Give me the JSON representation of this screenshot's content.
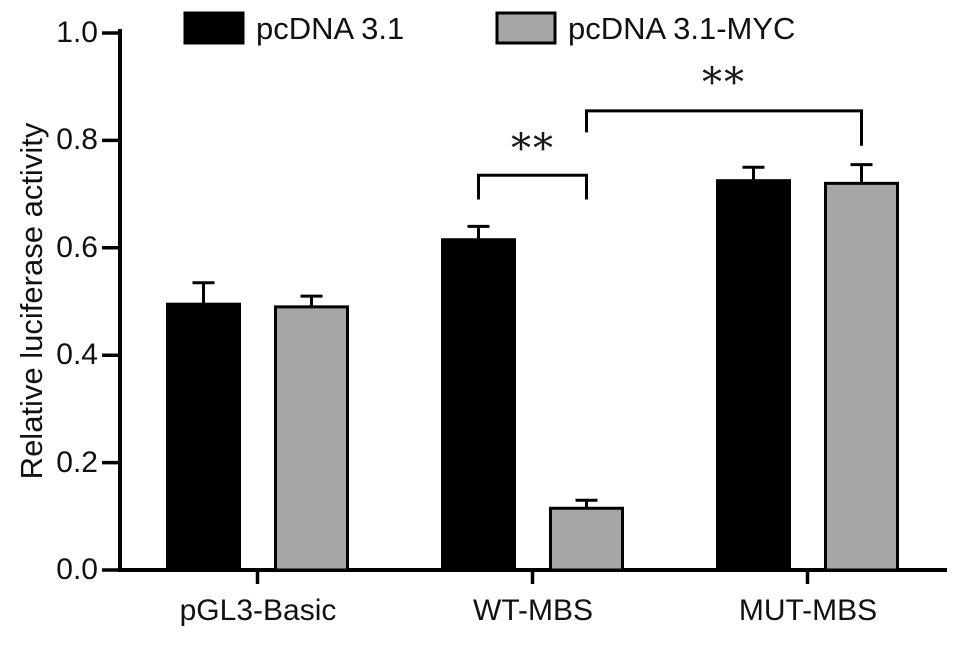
{
  "figure": {
    "ylabel": "Relative luciferase activity"
  },
  "chart_data": {
    "type": "bar",
    "title": "",
    "xlabel": "",
    "ylabel": "Relative luciferase activity",
    "categories": [
      "pGL3-Basic",
      "WT-MBS",
      "MUT-MBS"
    ],
    "series": [
      {
        "name": "pcDNA 3.1",
        "color": "#000000",
        "values": [
          0.495,
          0.615,
          0.725
        ],
        "errors": [
          0.04,
          0.025,
          0.025
        ]
      },
      {
        "name": "pcDNA 3.1-MYC",
        "color": "#a6a6a6",
        "values": [
          0.49,
          0.115,
          0.72
        ],
        "errors": [
          0.02,
          0.015,
          0.035
        ]
      }
    ],
    "ylim": [
      0,
      1.0
    ],
    "yticks": [
      0,
      0.2,
      0.4,
      0.6,
      0.8,
      1.0
    ],
    "ytick_labels": [
      "1.0",
      "0.8",
      "0.6",
      "0.4",
      "0.2",
      "0.0"
    ],
    "grid": false,
    "legend_position": "top",
    "error_bars": "upper-only",
    "annotations": [
      {
        "type": "bracket",
        "label": "**",
        "from_category": 1,
        "from_series": 0,
        "to_category": 1,
        "to_series": 1,
        "y": 0.735,
        "drop_left": 0.045,
        "drop_right": 0.045
      },
      {
        "type": "bracket",
        "label": "**",
        "from_category": 1,
        "from_series": 1,
        "to_category": 2,
        "to_series": 1,
        "y": 0.855,
        "drop_left": 0.04,
        "drop_right": 0.065
      }
    ]
  }
}
